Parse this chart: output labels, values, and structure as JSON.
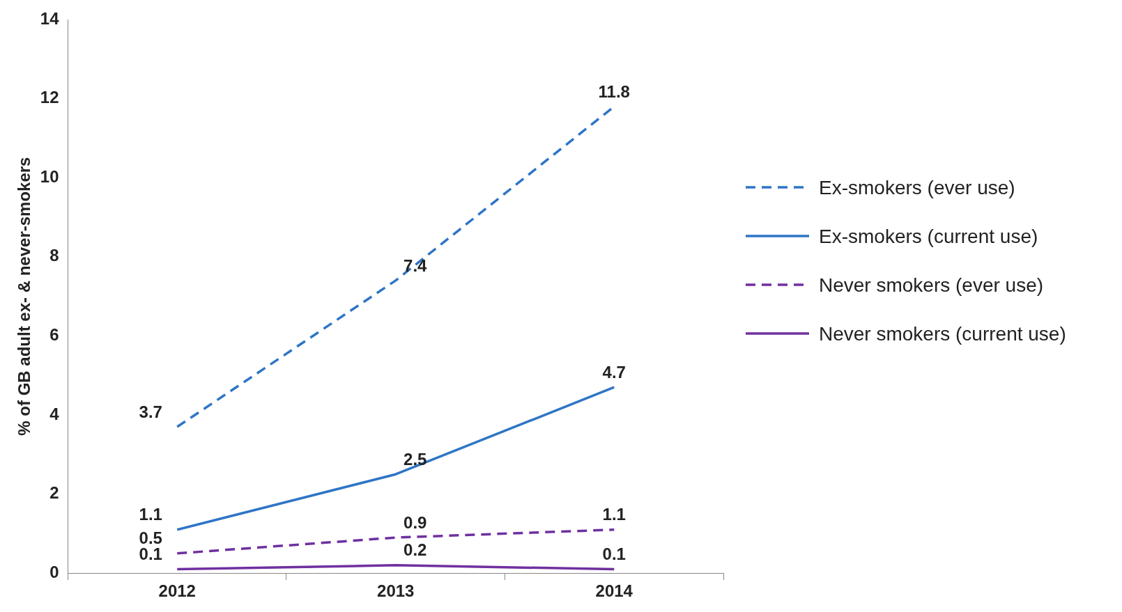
{
  "chart_data": {
    "type": "line",
    "ylabel": "% of GB adult ex- & never-smokers",
    "categories": [
      "2012",
      "2013",
      "2014"
    ],
    "series": [
      {
        "name": "Ex-smokers (ever use)",
        "color": "#2e75c6",
        "values": [
          3.7,
          7.4,
          11.8
        ],
        "line_style": "dashed"
      },
      {
        "name": "Ex-smokers (current use)",
        "color": "#2e75c6",
        "values": [
          1.1,
          2.5,
          4.7
        ],
        "line_style": "solid"
      },
      {
        "name": "Never smokers (ever use)",
        "color": "#7030a0",
        "values": [
          0.5,
          0.9,
          1.1
        ],
        "line_style": "dashed"
      },
      {
        "name": "Never smokers (current use)",
        "color": "#7030a0",
        "values": [
          0.1,
          0.2,
          0.1
        ],
        "line_style": "solid"
      }
    ],
    "ylim": [
      0,
      14
    ],
    "yticks": [
      0,
      2,
      4,
      6,
      8,
      10,
      12,
      14
    ],
    "grid": false,
    "legend": "right",
    "marker": "none",
    "data_labels": true
  }
}
